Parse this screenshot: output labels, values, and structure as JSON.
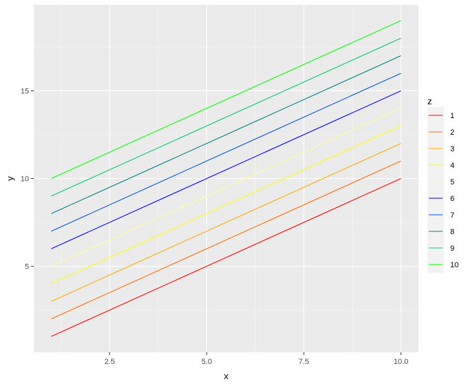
{
  "chart_data": {
    "type": "line",
    "title": "",
    "xlabel": "x",
    "ylabel": "y",
    "xlim": [
      0.55,
      10.45
    ],
    "ylim": [
      0.1,
      19.9
    ],
    "x_ticks": [
      2.5,
      5.0,
      7.5,
      10.0
    ],
    "x_tick_labels": [
      "2.5",
      "5.0",
      "7.5",
      "10.0"
    ],
    "y_ticks": [
      5,
      10,
      15
    ],
    "y_tick_labels": [
      "5",
      "10",
      "15"
    ],
    "grid": true,
    "legend": {
      "title": "z",
      "position": "right"
    },
    "x": [
      1,
      10
    ],
    "series": [
      {
        "name": "1",
        "color": "#FF0000",
        "values": [
          1,
          10
        ]
      },
      {
        "name": "2",
        "color": "#FF6A00",
        "values": [
          2,
          11
        ]
      },
      {
        "name": "3",
        "color": "#FFAA00",
        "values": [
          3,
          12
        ]
      },
      {
        "name": "4",
        "color": "#FFFF00",
        "values": [
          4,
          13
        ]
      },
      {
        "name": "5",
        "color": "#FFFF99",
        "values": [
          5,
          14
        ]
      },
      {
        "name": "6",
        "color": "#0000FF",
        "values": [
          6,
          15
        ]
      },
      {
        "name": "7",
        "color": "#0055DD",
        "values": [
          7,
          16
        ]
      },
      {
        "name": "8",
        "color": "#008080",
        "values": [
          8,
          17
        ]
      },
      {
        "name": "9",
        "color": "#00CC66",
        "values": [
          9,
          18
        ]
      },
      {
        "name": "10",
        "color": "#00FF00",
        "values": [
          10,
          19
        ]
      }
    ]
  }
}
